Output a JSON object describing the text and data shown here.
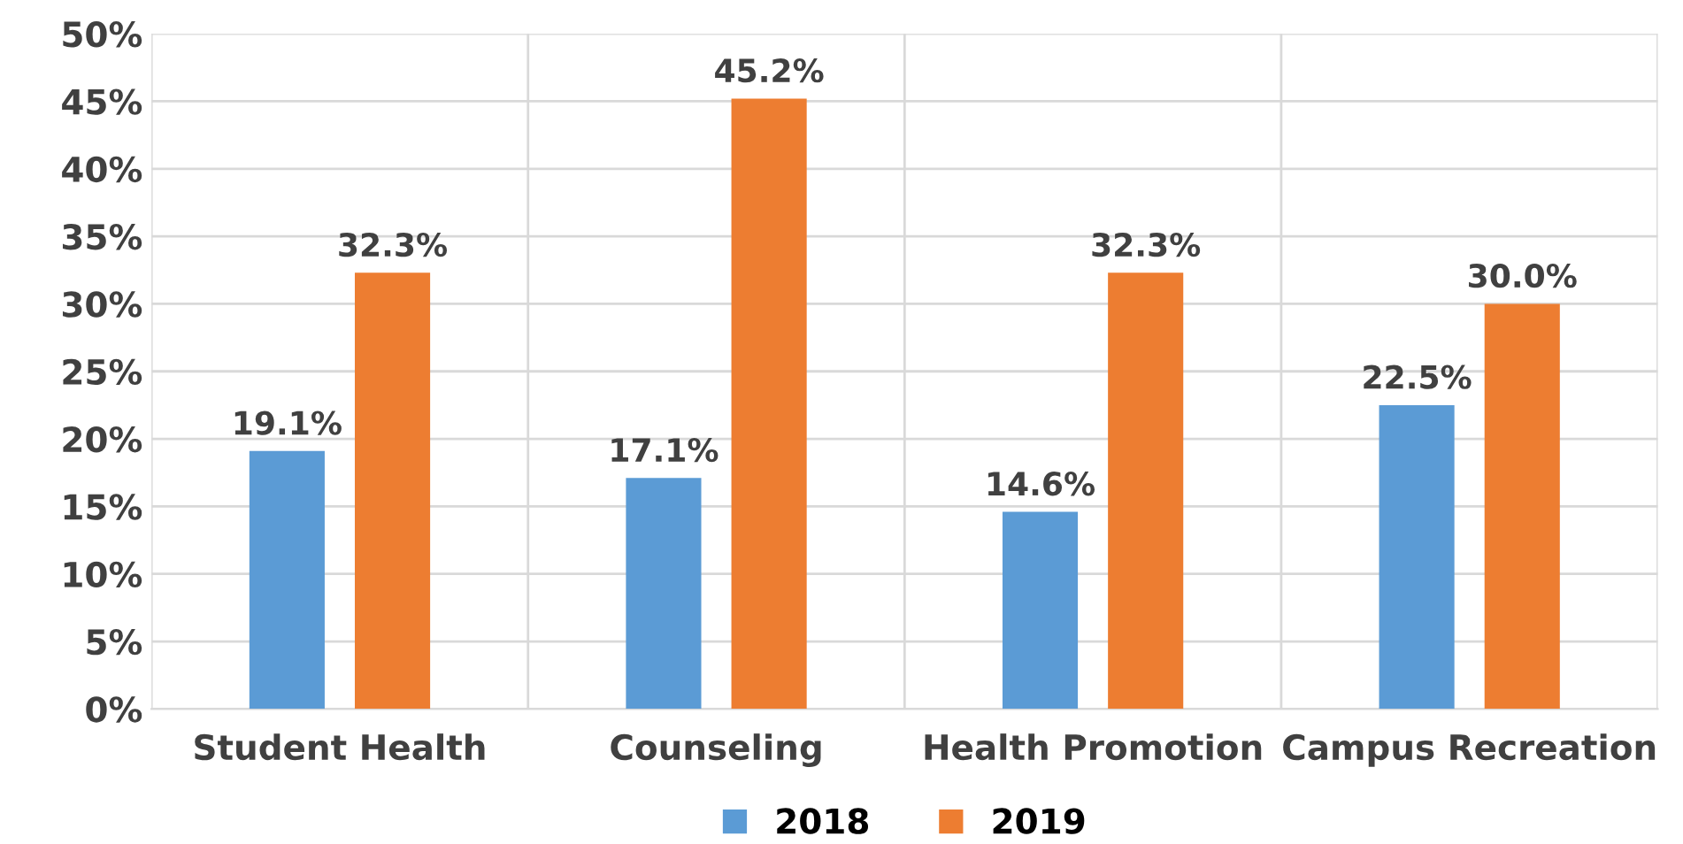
{
  "chart_data": {
    "type": "bar",
    "categories": [
      "Student Health",
      "Counseling",
      "Health Promotion",
      "Campus Recreation"
    ],
    "series": [
      {
        "name": "2018",
        "color": "#5b9bd5",
        "values": [
          19.1,
          17.1,
          14.6,
          22.5
        ],
        "value_labels": [
          "19.1%",
          "17.1%",
          "14.6%",
          "22.5%"
        ]
      },
      {
        "name": "2019",
        "color": "#ed7d31",
        "values": [
          32.3,
          45.2,
          32.3,
          30.0
        ],
        "value_labels": [
          "32.3%",
          "45.2%",
          "32.3%",
          "30.0%"
        ]
      }
    ],
    "ylim": [
      0,
      50
    ],
    "yticks": [
      {
        "value": 0,
        "label": "0%"
      },
      {
        "value": 5,
        "label": "5%"
      },
      {
        "value": 10,
        "label": "10%"
      },
      {
        "value": 15,
        "label": "15%"
      },
      {
        "value": 20,
        "label": "20%"
      },
      {
        "value": 25,
        "label": "25%"
      },
      {
        "value": 30,
        "label": "30%"
      },
      {
        "value": 35,
        "label": "35%"
      },
      {
        "value": 40,
        "label": "40%"
      },
      {
        "value": 45,
        "label": "45%"
      },
      {
        "value": 50,
        "label": "50%"
      }
    ],
    "grid": true,
    "legend": "bottom"
  }
}
